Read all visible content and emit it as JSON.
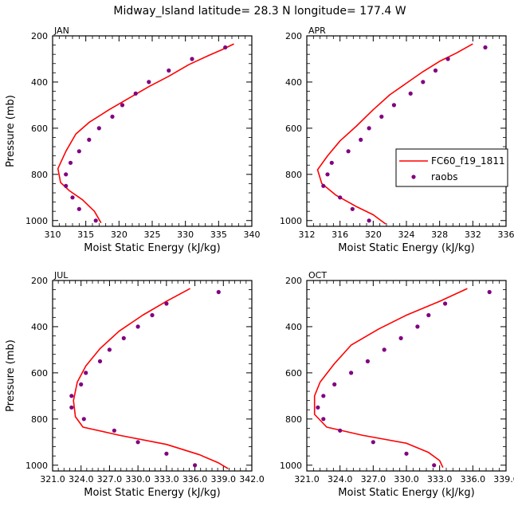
{
  "figure": {
    "title": "Midway_Island  latitude= 28.3 N longitude= 177.4 W",
    "legend": {
      "model_label": "FC60_f19_1811",
      "obs_label": "raobs",
      "model_color": "#ff0000",
      "obs_color": "#800080"
    }
  },
  "chart_data": [
    {
      "type": "line",
      "panel": "JAN",
      "title": "JAN",
      "xlabel": "Moist Static Energy (kJ/kg)",
      "ylabel": "Pressure (mb)",
      "xlim": [
        310,
        340
      ],
      "ylim": [
        1025,
        200
      ],
      "xticks": [
        310,
        315,
        320,
        325,
        330,
        335,
        340
      ],
      "xtick_labels": [
        "310",
        "315",
        "320",
        "325",
        "330",
        "335",
        "340"
      ],
      "yticks": [
        200,
        400,
        600,
        800,
        1000
      ],
      "ytick_labels": [
        "200",
        "400",
        "600",
        "800",
        "1000"
      ],
      "series": [
        {
          "name": "FC60_f19_1811",
          "kind": "line",
          "x": [
            337.3,
            335.5,
            333.5,
            330.5,
            327.5,
            324.5,
            321.5,
            318.5,
            315.5,
            313.5,
            312.0,
            310.8,
            311.2,
            312.5,
            314.5,
            316.3,
            317.3
          ],
          "y": [
            235,
            260,
            285,
            325,
            375,
            420,
            470,
            520,
            575,
            625,
            700,
            775,
            835,
            870,
            910,
            960,
            1010
          ]
        },
        {
          "name": "raobs",
          "kind": "scatter",
          "x": [
            336.0,
            331.0,
            327.5,
            324.5,
            322.5,
            320.5,
            319.0,
            317.0,
            315.5,
            314.0,
            312.7,
            312.0,
            312.0,
            313.0,
            314.0,
            316.5
          ],
          "y": [
            250,
            300,
            350,
            400,
            450,
            500,
            550,
            600,
            650,
            700,
            750,
            800,
            850,
            900,
            950,
            1000
          ]
        }
      ]
    },
    {
      "type": "line",
      "panel": "APR",
      "title": "APR",
      "xlabel": "Moist Static Energy (kJ/kg)",
      "ylabel": "",
      "xlim": [
        312,
        336
      ],
      "ylim": [
        1025,
        200
      ],
      "xticks": [
        312,
        316,
        320,
        324,
        328,
        332,
        336
      ],
      "xtick_labels": [
        "312",
        "316",
        "320",
        "324",
        "328",
        "332",
        "336"
      ],
      "yticks": [
        200,
        400,
        600,
        800,
        1000
      ],
      "ytick_labels": [
        "200",
        "400",
        "600",
        "800",
        "1000"
      ],
      "series": [
        {
          "name": "FC60_f19_1811",
          "kind": "line",
          "x": [
            332.0,
            330.0,
            328.0,
            326.0,
            324.0,
            322.0,
            320.0,
            318.0,
            316.0,
            314.5,
            313.3,
            313.8,
            315.5,
            318.0,
            320.0,
            321.5
          ],
          "y": [
            235,
            275,
            310,
            355,
            405,
            455,
            520,
            590,
            655,
            720,
            780,
            840,
            890,
            940,
            975,
            1015
          ]
        },
        {
          "name": "raobs",
          "kind": "scatter",
          "x": [
            333.5,
            329.0,
            327.5,
            326.0,
            324.5,
            322.5,
            321.0,
            319.5,
            318.5,
            317.0,
            315.0,
            314.5,
            314.0,
            316.0,
            317.5,
            319.5
          ],
          "y": [
            250,
            300,
            350,
            400,
            450,
            500,
            550,
            600,
            650,
            700,
            750,
            800,
            850,
            900,
            950,
            1000
          ]
        }
      ]
    },
    {
      "type": "line",
      "panel": "JUL",
      "title": "JUL",
      "xlabel": "Moist Static Energy (kJ/kg)",
      "ylabel": "Pressure (mb)",
      "xlim": [
        321.0,
        342.0
      ],
      "ylim": [
        1025,
        200
      ],
      "xticks": [
        321.0,
        324.0,
        327.0,
        330.0,
        333.0,
        336.0,
        339.0,
        342.0
      ],
      "xtick_labels": [
        "321.0",
        "324.0",
        "327.0",
        "330.0",
        "333.0",
        "336.0",
        "339.0",
        "342.0"
      ],
      "yticks": [
        200,
        400,
        600,
        800,
        1000
      ],
      "ytick_labels": [
        "200",
        "400",
        "600",
        "800",
        "1000"
      ],
      "series": [
        {
          "name": "FC60_f19_1811",
          "kind": "line",
          "x": [
            335.5,
            333.0,
            330.5,
            328.0,
            326.0,
            324.5,
            323.6,
            323.2,
            323.4,
            324.2,
            328.0,
            333.0,
            336.5,
            338.5,
            339.5
          ],
          "y": [
            235,
            290,
            350,
            420,
            495,
            570,
            640,
            720,
            790,
            835,
            870,
            910,
            955,
            990,
            1015
          ]
        },
        {
          "name": "raobs",
          "kind": "scatter",
          "x": [
            338.5,
            333.0,
            331.5,
            330.0,
            328.5,
            327.0,
            326.0,
            324.5,
            324.0,
            323.0,
            323.0,
            324.3,
            327.5,
            330.0,
            333.0,
            336.0
          ],
          "y": [
            250,
            300,
            350,
            400,
            450,
            500,
            550,
            600,
            650,
            700,
            750,
            800,
            850,
            900,
            950,
            1000
          ]
        }
      ]
    },
    {
      "type": "line",
      "panel": "OCT",
      "title": "OCT",
      "xlabel": "Moist Static Energy (kJ/kg)",
      "ylabel": "",
      "xlim": [
        321.0,
        339.0
      ],
      "ylim": [
        1025,
        200
      ],
      "xticks": [
        321.0,
        324.0,
        327.0,
        330.0,
        333.0,
        336.0,
        339.0
      ],
      "xtick_labels": [
        "321.0",
        "324.0",
        "327.0",
        "330.0",
        "333.0",
        "336.0",
        "339.0"
      ],
      "yticks": [
        200,
        400,
        600,
        800,
        1000
      ],
      "ytick_labels": [
        "200",
        "400",
        "600",
        "800",
        "1000"
      ],
      "series": [
        {
          "name": "FC60_f19_1811",
          "kind": "line",
          "x": [
            335.5,
            333.0,
            330.0,
            327.5,
            325.0,
            323.5,
            322.2,
            321.7,
            321.7,
            322.8,
            326.0,
            330.0,
            332.0,
            333.0,
            333.3
          ],
          "y": [
            235,
            290,
            350,
            410,
            480,
            560,
            640,
            700,
            780,
            835,
            870,
            905,
            945,
            980,
            1010
          ]
        },
        {
          "name": "raobs",
          "kind": "scatter",
          "x": [
            337.5,
            333.5,
            332.0,
            331.0,
            329.5,
            328.0,
            326.5,
            325.0,
            323.5,
            322.5,
            322.0,
            322.5,
            324.0,
            327.0,
            330.0,
            332.5
          ],
          "y": [
            250,
            300,
            350,
            400,
            450,
            500,
            550,
            600,
            650,
            700,
            750,
            800,
            850,
            900,
            950,
            1000
          ]
        }
      ]
    }
  ]
}
